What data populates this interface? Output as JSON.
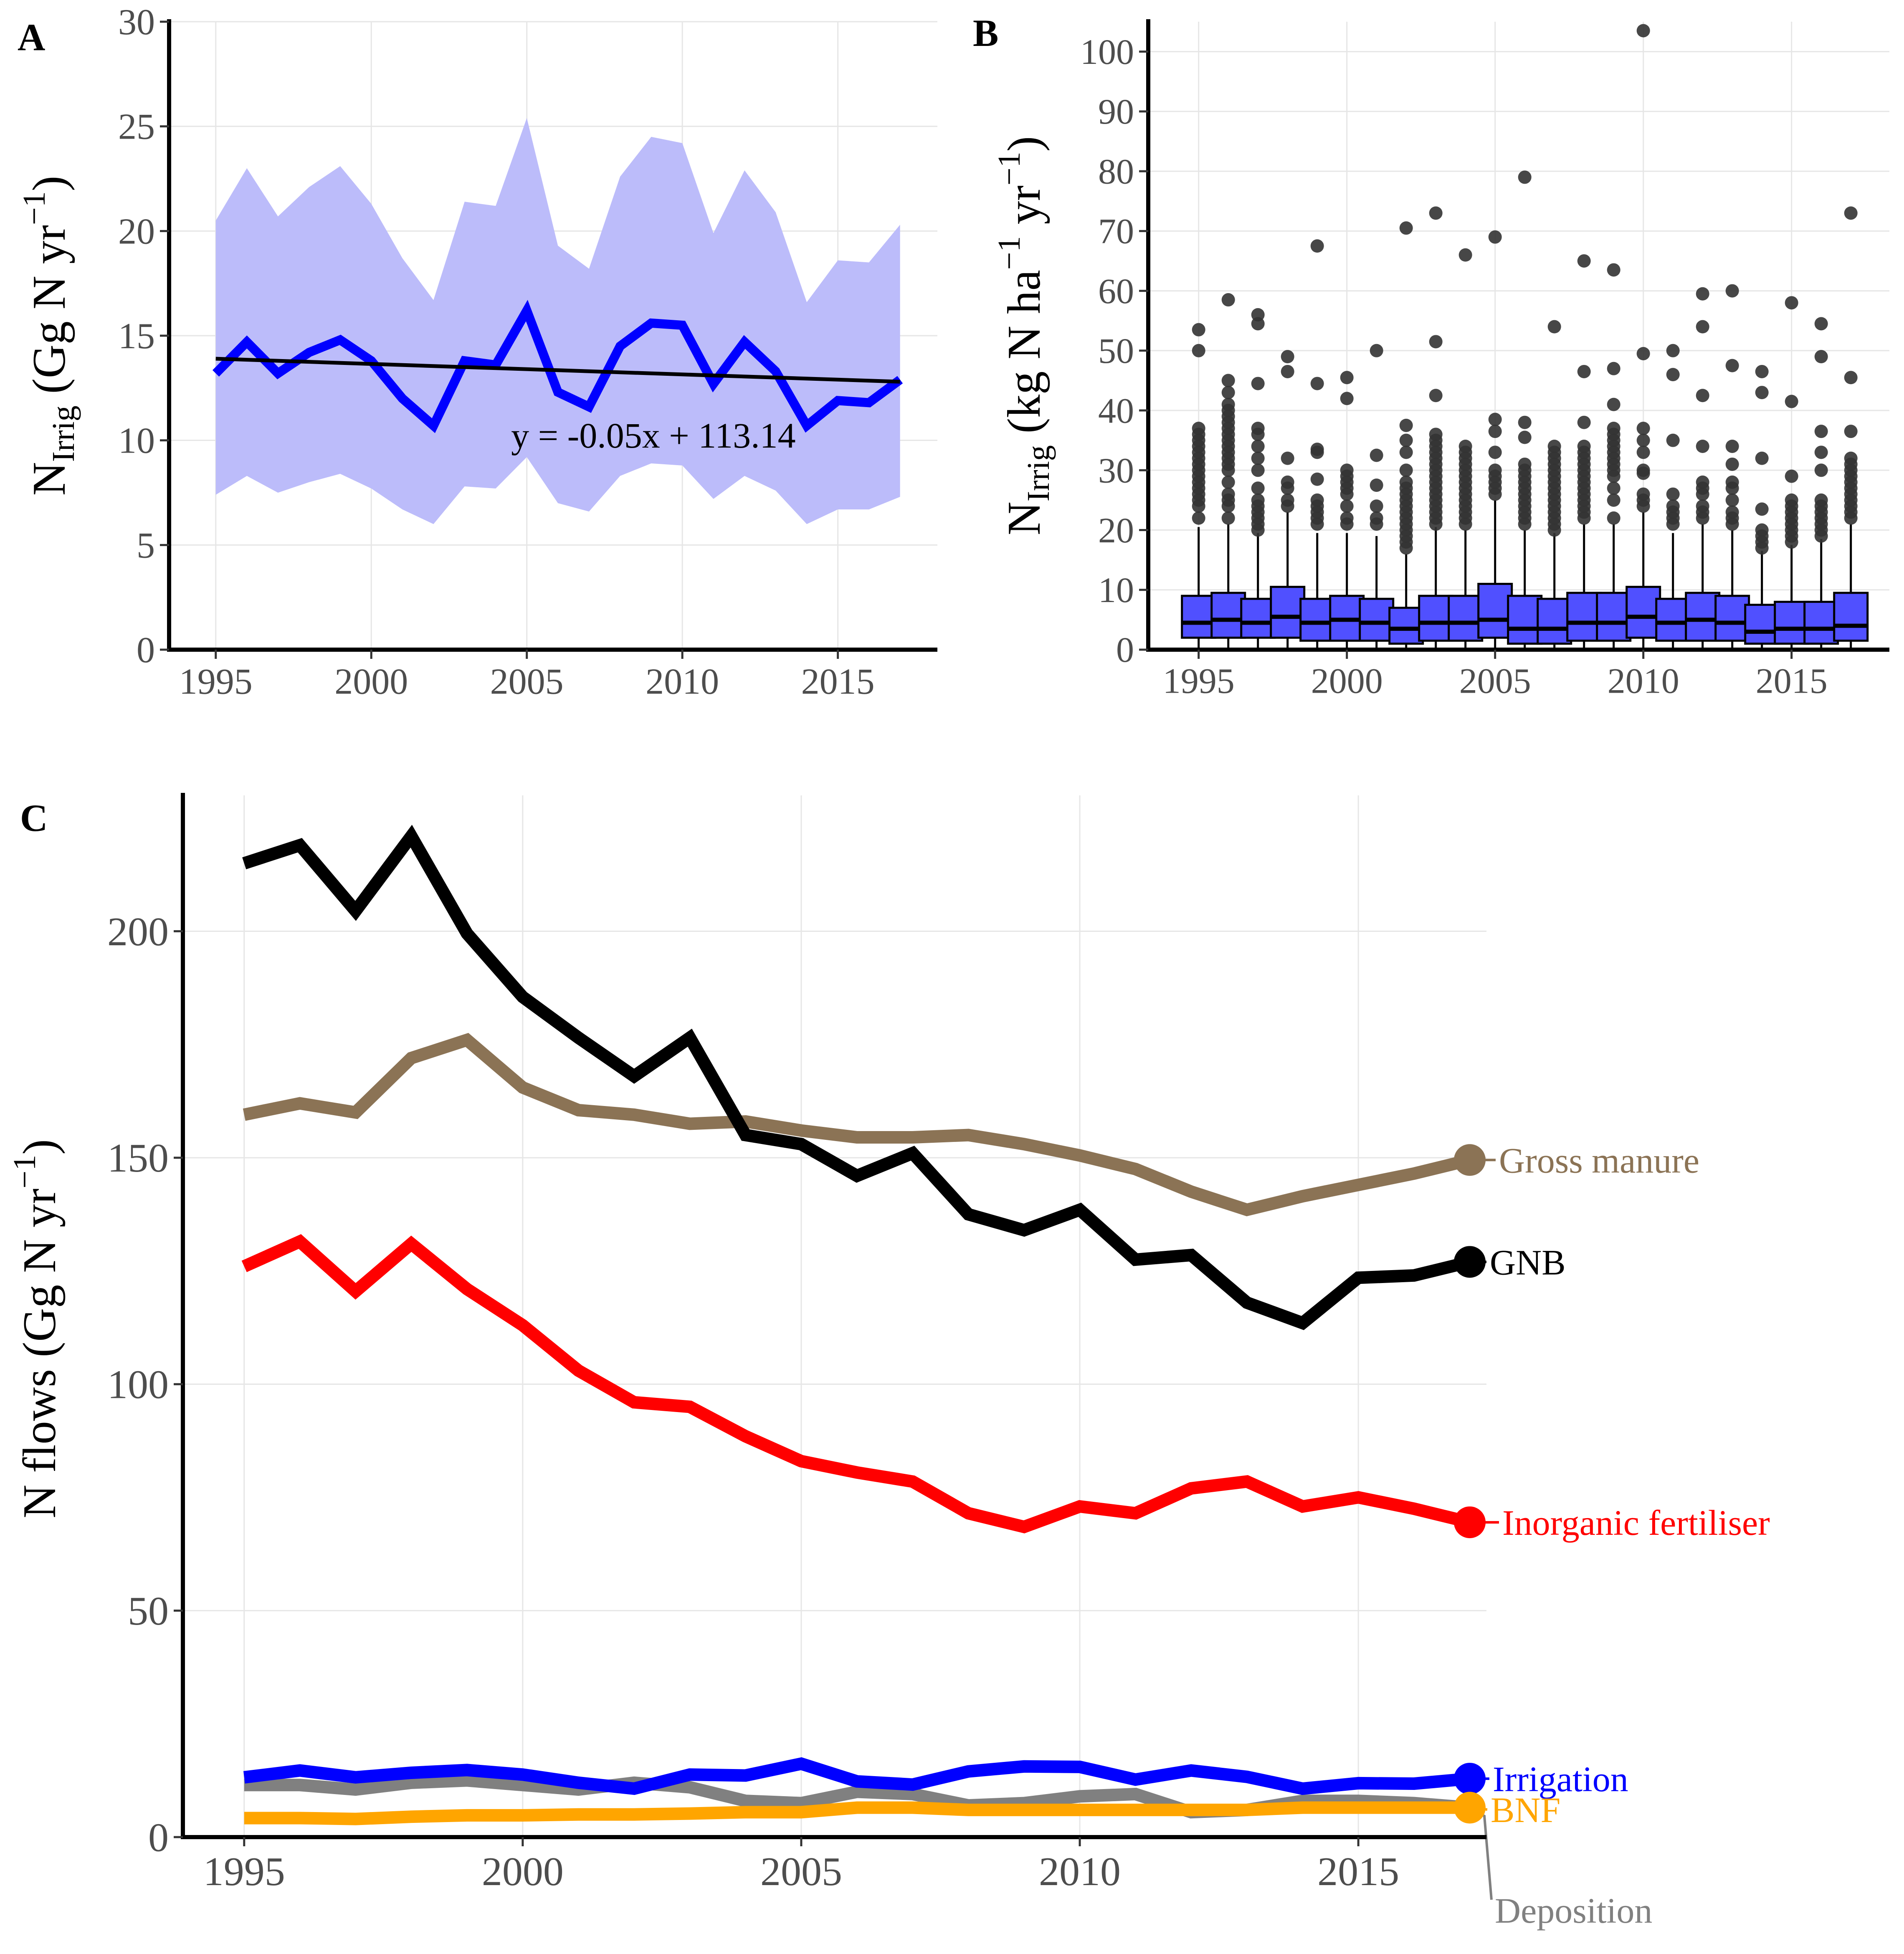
{
  "chart_data": [
    {
      "panel": "A",
      "type": "line",
      "x": [
        1995,
        1996,
        1997,
        1998,
        1999,
        2000,
        2001,
        2002,
        2003,
        2004,
        2005,
        2006,
        2007,
        2008,
        2009,
        2010,
        2011,
        2012,
        2013,
        2014,
        2015,
        2016,
        2017
      ],
      "series": [
        {
          "values": [
            13.2,
            14.7,
            13.2,
            14.2,
            14.8,
            13.8,
            12.0,
            10.7,
            13.8,
            13.6,
            16.2,
            12.3,
            11.6,
            14.5,
            15.6,
            15.5,
            12.7,
            14.7,
            13.3,
            10.7,
            11.9,
            11.8,
            12.9
          ],
          "color": "#0000ff"
        }
      ],
      "band_upper": [
        20.5,
        23.0,
        20.7,
        22.1,
        23.1,
        21.3,
        18.7,
        16.7,
        21.4,
        21.2,
        25.4,
        19.3,
        18.2,
        22.6,
        24.5,
        24.2,
        19.9,
        22.9,
        20.9,
        16.6,
        18.6,
        18.5,
        20.3
      ],
      "band_lower": [
        7.4,
        8.3,
        7.5,
        8.0,
        8.4,
        7.7,
        6.7,
        6.0,
        7.8,
        7.7,
        9.2,
        7.0,
        6.6,
        8.3,
        8.9,
        8.8,
        7.2,
        8.3,
        7.6,
        6.0,
        6.7,
        6.7,
        7.3
      ],
      "band_color": "#bcbcfa",
      "trend": {
        "x": [
          1995,
          2017
        ],
        "values": [
          13.9,
          12.8
        ],
        "color": "#000000"
      },
      "annotation": "y = -0.05x + 113.14",
      "ylabel": {
        "main": "N",
        "sub": "Irrig",
        "unit": "(Gg N yr",
        "sup": "−1",
        "close": ")"
      },
      "xlim": [
        1993.5,
        2018.2
      ],
      "ylim": [
        0,
        30
      ],
      "xticks": [
        1995,
        2000,
        2005,
        2010,
        2015
      ],
      "yticks": [
        0,
        5,
        10,
        15,
        20,
        25,
        30
      ],
      "grid": true
    },
    {
      "panel": "B",
      "type": "box",
      "x": [
        1995,
        1996,
        1997,
        1998,
        1999,
        2000,
        2001,
        2002,
        2003,
        2004,
        2005,
        2006,
        2007,
        2008,
        2009,
        2010,
        2011,
        2012,
        2013,
        2014,
        2015,
        2016,
        2017
      ],
      "boxes": [
        {
          "q1": 2.0,
          "median": 4.5,
          "q3": 9.0,
          "whisker_low": 0,
          "whisker_high": 20.5,
          "outliers": [
            22,
            24,
            25,
            26,
            27,
            28,
            29,
            30,
            31,
            32,
            33,
            34,
            35,
            36,
            37,
            50,
            53.5
          ]
        },
        {
          "q1": 2.0,
          "median": 5.0,
          "q3": 9.5,
          "whisker_low": 0,
          "whisker_high": 21,
          "outliers": [
            22,
            24,
            25,
            26,
            28,
            30,
            31,
            32,
            33,
            34,
            35,
            36,
            37,
            38,
            39,
            40,
            41,
            43,
            45,
            58.5
          ]
        },
        {
          "q1": 2.0,
          "median": 4.5,
          "q3": 8.5,
          "whisker_low": 0,
          "whisker_high": 19.5,
          "outliers": [
            20,
            21,
            22,
            23,
            24,
            25,
            27,
            30,
            32,
            34,
            36,
            37,
            44.5,
            54.5,
            56
          ]
        },
        {
          "q1": 2.0,
          "median": 5.5,
          "q3": 10.5,
          "whisker_low": 0,
          "whisker_high": 23,
          "outliers": [
            24,
            25,
            27,
            28,
            32,
            46.5,
            49
          ]
        },
        {
          "q1": 1.5,
          "median": 4.5,
          "q3": 8.5,
          "whisker_low": 0,
          "whisker_high": 19.5,
          "outliers": [
            21,
            22,
            23,
            24,
            25,
            28.5,
            33,
            33.5,
            44.5,
            67.5
          ]
        },
        {
          "q1": 1.5,
          "median": 5.0,
          "q3": 9.0,
          "whisker_low": 0,
          "whisker_high": 19.5,
          "outliers": [
            21,
            22,
            24,
            26,
            27,
            28,
            29,
            30,
            42,
            45.5
          ]
        },
        {
          "q1": 1.5,
          "median": 4.5,
          "q3": 8.5,
          "whisker_low": 0,
          "whisker_high": 19,
          "outliers": [
            21,
            22,
            24,
            27.5,
            32.5,
            50
          ]
        },
        {
          "q1": 1.0,
          "median": 3.5,
          "q3": 7.0,
          "whisker_low": 0,
          "whisker_high": 16,
          "outliers": [
            17,
            18,
            19,
            20,
            21,
            22,
            23,
            24,
            25,
            26,
            27,
            28,
            30,
            33,
            35,
            37.5,
            70.5
          ]
        },
        {
          "q1": 1.5,
          "median": 4.5,
          "q3": 9.0,
          "whisker_low": 0,
          "whisker_high": 20.5,
          "outliers": [
            21,
            22,
            23,
            24,
            25,
            26,
            27,
            28,
            29,
            30,
            31,
            32,
            33,
            34,
            35,
            36,
            42.5,
            51.5,
            73
          ]
        },
        {
          "q1": 1.5,
          "median": 4.5,
          "q3": 9.0,
          "whisker_low": 0,
          "whisker_high": 20,
          "outliers": [
            21,
            22,
            23,
            24,
            25,
            26,
            27,
            28,
            29,
            30,
            31,
            32,
            33,
            34,
            66
          ]
        },
        {
          "q1": 2.0,
          "median": 5.0,
          "q3": 11.0,
          "whisker_low": 0,
          "whisker_high": 25,
          "outliers": [
            26,
            27,
            28,
            29,
            30,
            33,
            36.5,
            38.5,
            69
          ]
        },
        {
          "q1": 1.0,
          "median": 3.5,
          "q3": 9.0,
          "whisker_low": 0,
          "whisker_high": 20,
          "outliers": [
            21,
            22,
            23,
            24,
            25,
            26,
            27,
            28,
            29,
            30,
            31,
            35.5,
            38,
            79
          ]
        },
        {
          "q1": 1.0,
          "median": 3.5,
          "q3": 8.5,
          "whisker_low": 0,
          "whisker_high": 19.5,
          "outliers": [
            20,
            21,
            22,
            23,
            24,
            25,
            26,
            27,
            28,
            29,
            30,
            31,
            32,
            33,
            34,
            54
          ]
        },
        {
          "q1": 1.5,
          "median": 4.5,
          "q3": 9.5,
          "whisker_low": 0,
          "whisker_high": 21,
          "outliers": [
            22,
            23,
            24,
            25,
            26,
            27,
            28,
            29,
            30,
            31,
            32,
            33,
            34,
            38,
            46.5,
            65
          ]
        },
        {
          "q1": 1.5,
          "median": 4.5,
          "q3": 9.5,
          "whisker_low": 0,
          "whisker_high": 21,
          "outliers": [
            22,
            25,
            27,
            29,
            30,
            31,
            32,
            33,
            34,
            35,
            36,
            37,
            41,
            47,
            63.5
          ]
        },
        {
          "q1": 2.0,
          "median": 5.5,
          "q3": 10.5,
          "whisker_low": 0,
          "whisker_high": 23,
          "outliers": [
            24,
            25,
            26,
            29.5,
            30,
            33,
            35,
            37,
            49.5,
            103.5
          ]
        },
        {
          "q1": 1.5,
          "median": 4.5,
          "q3": 8.5,
          "whisker_low": 0,
          "whisker_high": 19.5,
          "outliers": [
            21,
            22,
            23,
            24,
            26,
            35,
            46,
            50
          ]
        },
        {
          "q1": 1.5,
          "median": 5.0,
          "q3": 9.5,
          "whisker_low": 0,
          "whisker_high": 21,
          "outliers": [
            22,
            23,
            24,
            26,
            27,
            28,
            34,
            42.5,
            54,
            59.5
          ]
        },
        {
          "q1": 1.5,
          "median": 4.5,
          "q3": 9.0,
          "whisker_low": 0,
          "whisker_high": 20,
          "outliers": [
            21,
            22,
            23,
            25,
            27,
            28,
            31,
            34,
            47.5,
            60
          ]
        },
        {
          "q1": 1.0,
          "median": 3.0,
          "q3": 7.5,
          "whisker_low": 0,
          "whisker_high": 16.5,
          "outliers": [
            17,
            18,
            19,
            20,
            23.5,
            32,
            43,
            46.5
          ]
        },
        {
          "q1": 1.0,
          "median": 3.5,
          "q3": 8.0,
          "whisker_low": 0,
          "whisker_high": 17.5,
          "outliers": [
            18,
            19,
            20,
            21,
            22,
            23,
            24,
            25,
            29,
            41.5,
            58
          ]
        },
        {
          "q1": 1.0,
          "median": 3.5,
          "q3": 8.0,
          "whisker_low": 0,
          "whisker_high": 18.5,
          "outliers": [
            19,
            20,
            21,
            22,
            23,
            24,
            25,
            30,
            33,
            36.5,
            49,
            54.5
          ]
        },
        {
          "q1": 1.5,
          "median": 4.0,
          "q3": 9.5,
          "whisker_low": 0,
          "whisker_high": 21,
          "outliers": [
            22,
            23,
            24,
            25,
            26,
            27,
            28,
            29,
            30,
            31,
            32,
            36.5,
            45.5,
            73
          ]
        }
      ],
      "box_color": "#5050ff",
      "outlier_color": "#333333",
      "ylabel": {
        "main": "N",
        "sub": "Irrig",
        "unit": "(kg N ha",
        "sup": "−1",
        "unit2": "yr",
        "sup2": "−1",
        "close": ")"
      },
      "xlim": [
        1993.3,
        2018.3
      ],
      "ylim": [
        0,
        105
      ],
      "xticks": [
        1995,
        2000,
        2005,
        2010,
        2015
      ],
      "yticks": [
        0,
        10,
        20,
        30,
        40,
        50,
        60,
        70,
        80,
        90,
        100
      ],
      "grid": true
    },
    {
      "panel": "C",
      "type": "line",
      "x": [
        1995,
        1996,
        1997,
        1998,
        1999,
        2000,
        2001,
        2002,
        2003,
        2004,
        2005,
        2006,
        2007,
        2008,
        2009,
        2010,
        2011,
        2012,
        2013,
        2014,
        2015,
        2016,
        2017
      ],
      "series": [
        {
          "name": "Gross manure",
          "color": "#8b7355",
          "values": [
            159.5,
            162,
            160,
            172,
            176,
            165.5,
            160.5,
            159.5,
            157.5,
            158,
            156,
            154.5,
            154.5,
            155,
            153,
            150.5,
            147.5,
            142.5,
            138.5,
            141.5,
            144,
            146.5,
            149.5
          ]
        },
        {
          "name": "GNB",
          "color": "#000000",
          "values": [
            215,
            219,
            204.5,
            221,
            199.5,
            185.5,
            176.5,
            168,
            176.5,
            155,
            153,
            146,
            151,
            137.5,
            134,
            138.5,
            127.5,
            128.5,
            118,
            113.5,
            123.5,
            124,
            127
          ]
        },
        {
          "name": "Inorganic fertiliser",
          "color": "#ff0000",
          "values": [
            126,
            131.5,
            120.5,
            131,
            121,
            113,
            103,
            96,
            95,
            88.5,
            83,
            80.5,
            78.5,
            71.5,
            68.5,
            73,
            71.5,
            77,
            78.5,
            73,
            75,
            72.5,
            69.5
          ]
        },
        {
          "name": "Irrigation",
          "color": "#0000ff",
          "values": [
            13.2,
            14.7,
            13.2,
            14.2,
            14.8,
            13.8,
            12.0,
            10.7,
            13.8,
            13.6,
            16.2,
            12.3,
            11.6,
            14.5,
            15.6,
            15.5,
            12.7,
            14.7,
            13.3,
            10.7,
            11.9,
            11.8,
            12.9
          ]
        },
        {
          "name": "Deposition",
          "color": "#808080",
          "values": [
            11.5,
            11.5,
            10.5,
            12,
            12.5,
            11.5,
            10.5,
            12,
            11,
            8,
            7.5,
            10,
            9.5,
            7,
            7.5,
            9,
            9.5,
            5.5,
            6,
            8,
            8,
            7.5,
            6.5
          ]
        },
        {
          "name": "BNF",
          "color": "#ffa500",
          "values": [
            4.2,
            4.2,
            4.0,
            4.5,
            4.8,
            4.8,
            5.0,
            5.0,
            5.2,
            5.5,
            5.5,
            6.5,
            6.5,
            6.0,
            6.0,
            6.0,
            6.0,
            6.0,
            6.0,
            6.5,
            6.5,
            6.5,
            6.5
          ]
        }
      ],
      "ylabel": "N flows (Gg N yr",
      "ylabel_sup": "−1",
      "ylabel_close": ")",
      "xlim": [
        1993.9,
        2017.3
      ],
      "ylim": [
        0,
        230
      ],
      "xticks": [
        1995,
        2000,
        2005,
        2010,
        2015
      ],
      "yticks": [
        0,
        50,
        100,
        150,
        200
      ],
      "grid": true,
      "legend": "direct labels at line ends (right)"
    }
  ],
  "panels": {
    "a": {
      "tag": "A"
    },
    "b": {
      "tag": "B"
    },
    "c": {
      "tag": "C"
    }
  }
}
